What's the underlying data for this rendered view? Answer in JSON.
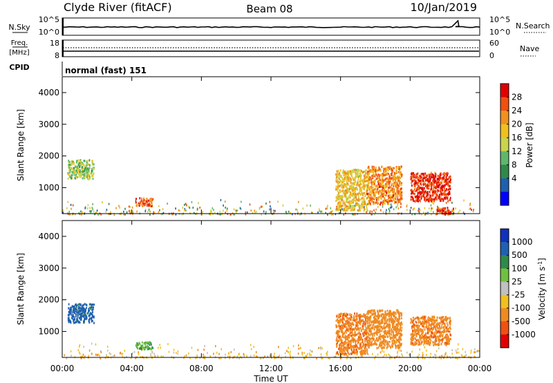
{
  "header": {
    "station": "Clyde River (fitACF)",
    "beam": "Beam 08",
    "date": "10/Jan/2019"
  },
  "colors": {
    "axis": "#000000",
    "power_scale": [
      "#0000ff",
      "#1f5fb0",
      "#2f8a4a",
      "#5fb86a",
      "#c8d44a",
      "#f0c020",
      "#f09020",
      "#f05010",
      "#e00000"
    ],
    "velocity_scale": [
      "#1030c0",
      "#2060b0",
      "#2f8a4a",
      "#70c040",
      "#c0c0c0",
      "#f0c020",
      "#f08a20",
      "#f05010",
      "#e00000"
    ]
  },
  "chart_data": [
    {
      "type": "line",
      "panel": "noise",
      "left_label": "N.Sky",
      "left_ticks": [
        "10^5",
        "10^0"
      ],
      "right_label": "N.Search",
      "right_ticks": [
        "10^5",
        "10^0"
      ],
      "series": [
        {
          "name": "N.Sky",
          "style": "solid",
          "x": [
            "00:00",
            "06:00",
            "12:00",
            "18:00",
            "22:40",
            "22:50",
            "24:00"
          ],
          "y": [
            10,
            10,
            10,
            10,
            10,
            100000,
            10
          ]
        },
        {
          "name": "N.Search",
          "style": "dotted",
          "x": [
            "00:00",
            "24:00"
          ],
          "y": [
            0,
            0
          ]
        }
      ]
    },
    {
      "type": "line",
      "panel": "frequency",
      "left_label": "Freq.\n[MHz]",
      "left_ticks": [
        "18",
        "8"
      ],
      "right_label": "Nave",
      "right_ticks": [
        "60",
        "0"
      ],
      "series": [
        {
          "name": "Freq.",
          "style": "solid",
          "x": [
            "00:00",
            "24:00"
          ],
          "y": [
            10,
            10
          ]
        },
        {
          "name": "Nave",
          "style": "dotted",
          "x": [
            "00:00",
            "24:00"
          ],
          "y": [
            20,
            20
          ]
        }
      ]
    },
    {
      "type": "table",
      "panel": "cpid",
      "label": "CPID",
      "value": "normal (fast) 151"
    },
    {
      "type": "heatmap",
      "panel": "power",
      "ylabel": "Slant Range [km]",
      "yticks": [
        "4000",
        "3000",
        "2000",
        "1000"
      ],
      "ylim": [
        180,
        4500
      ],
      "colorbar_label": "Power [dB]",
      "colorbar_ticks": [
        "28",
        "24",
        "20",
        "16",
        "12",
        "8",
        "4"
      ],
      "colorbar_range": [
        0,
        30
      ],
      "regions": [
        {
          "t": [
            0.3,
            1.8
          ],
          "r": [
            1300,
            1900
          ],
          "value": 14
        },
        {
          "t": [
            4.2,
            5.2
          ],
          "r": [
            450,
            700
          ],
          "value": 24
        },
        {
          "t": [
            15.7,
            17.5
          ],
          "r": [
            300,
            1600
          ],
          "value": 18
        },
        {
          "t": [
            17.5,
            19.5
          ],
          "r": [
            500,
            1700
          ],
          "value": 22
        },
        {
          "t": [
            20.0,
            22.3
          ],
          "r": [
            600,
            1500
          ],
          "value": 27
        },
        {
          "t": [
            21.5,
            22.5
          ],
          "r": [
            180,
            400
          ],
          "value": 26
        }
      ]
    },
    {
      "type": "heatmap",
      "panel": "velocity",
      "ylabel": "Slant Range [km]",
      "yticks": [
        "4000",
        "3000",
        "2000",
        "1000"
      ],
      "ylim": [
        180,
        4500
      ],
      "colorbar_label": "Velocity [m s^-1]",
      "colorbar_ticks": [
        "1000",
        "500",
        "100",
        "25",
        "-25",
        "-100",
        "-500",
        "-1000"
      ],
      "regions": [
        {
          "t": [
            0.3,
            1.8
          ],
          "r": [
            1300,
            1900
          ],
          "value": 700
        },
        {
          "t": [
            4.2,
            5.2
          ],
          "r": [
            450,
            700
          ],
          "value": 100
        },
        {
          "t": [
            15.7,
            17.5
          ],
          "r": [
            300,
            1600
          ],
          "value": -400
        },
        {
          "t": [
            17.5,
            19.5
          ],
          "r": [
            500,
            1700
          ],
          "value": -300
        },
        {
          "t": [
            20.0,
            22.3
          ],
          "r": [
            600,
            1500
          ],
          "value": -400
        }
      ]
    }
  ],
  "xaxis": {
    "label": "Time UT",
    "ticks": [
      "00:00",
      "04:00",
      "08:00",
      "12:00",
      "16:00",
      "20:00",
      "00:00"
    ],
    "range_hours": [
      0,
      24
    ]
  }
}
